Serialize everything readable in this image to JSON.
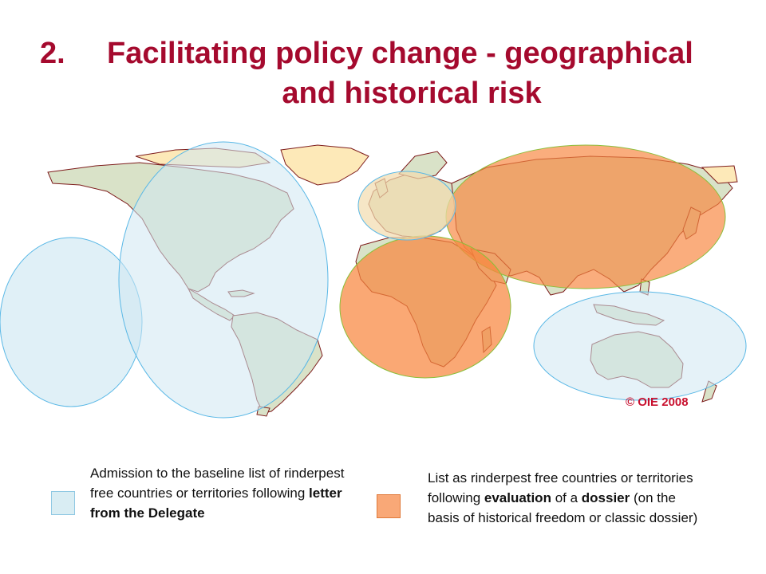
{
  "title": {
    "number": "2.",
    "line1": "Facilitating policy change - geographical",
    "line2": "and historical risk"
  },
  "map": {
    "copyright": "© OIE 2008",
    "colors": {
      "land": "#d9e2c8",
      "land_border": "#7d1b1b",
      "greenland": "#fde9b8",
      "blue_zone": "#cfe8f2",
      "blue_zone_stroke": "#5ab8e6",
      "orange_zone": "#f8863f",
      "orange_zone_stroke": "#8bbf3a",
      "europe_zone": "#f2dcae",
      "copyright": "#c8102e"
    }
  },
  "legend": {
    "blue": {
      "text_before": "Admission to the baseline list of rinderpest free countries or territories following ",
      "text_bold": "letter from the Delegate",
      "text_after": ""
    },
    "orange": {
      "text_before": "List as rinderpest free countries or territories following ",
      "text_bold1": "evaluation",
      "text_mid1": " of a ",
      "text_bold2": "dossier",
      "text_after": " (on the basis of historical freedom or classic dossier)"
    }
  }
}
